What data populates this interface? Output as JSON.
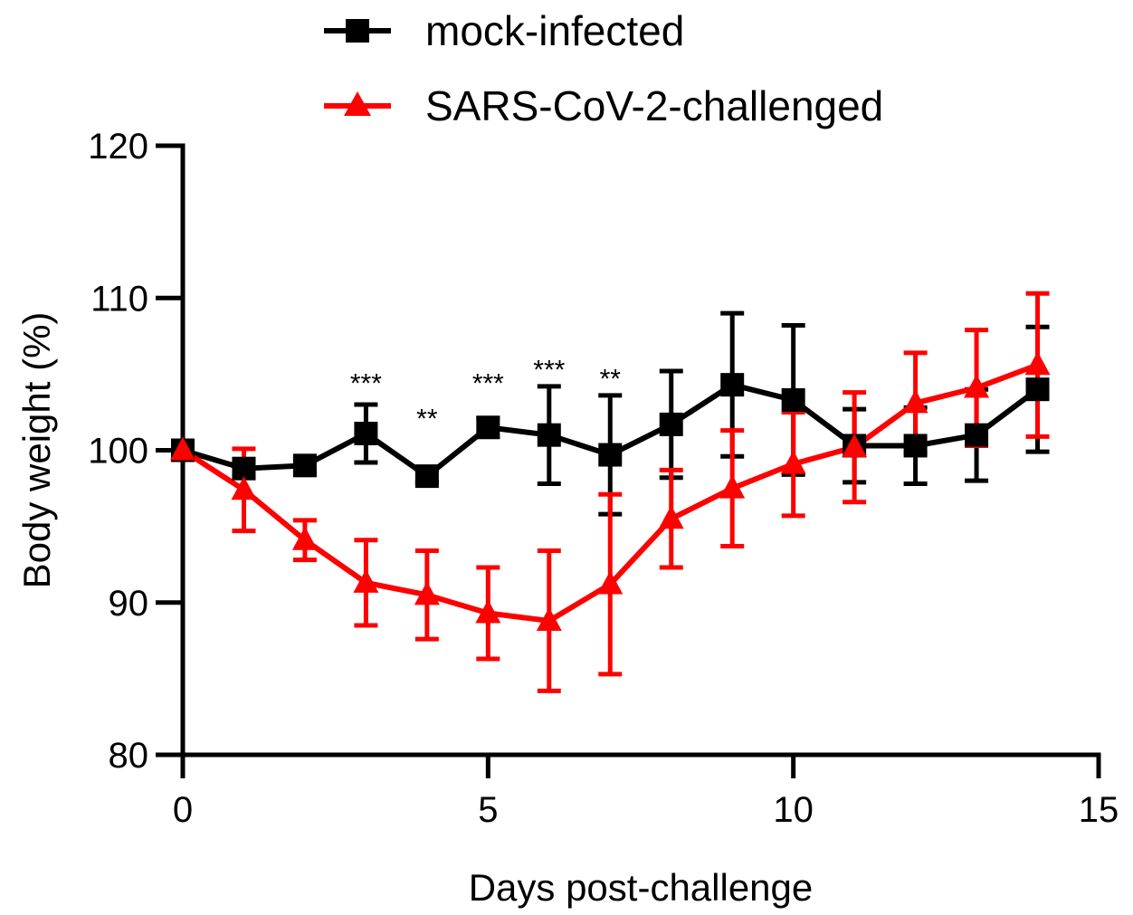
{
  "chart_data": {
    "type": "line",
    "title": "",
    "xlabel": "Days post-challenge",
    "ylabel": "Body weight (%)",
    "xlim": [
      0,
      15
    ],
    "ylim": [
      80,
      120
    ],
    "x_ticks": [
      0,
      5,
      10,
      15
    ],
    "y_ticks": [
      80,
      90,
      100,
      110,
      120
    ],
    "grid": false,
    "legend_position": "top-center",
    "series": [
      {
        "name": "mock-infected",
        "color": "#000000",
        "marker": "square",
        "x": [
          0,
          1,
          2,
          3,
          4,
          5,
          6,
          7,
          8,
          9,
          10,
          11,
          12,
          13,
          14
        ],
        "y": [
          100,
          98.8,
          99.0,
          101.1,
          98.3,
          101.5,
          101.0,
          99.7,
          101.7,
          104.3,
          103.3,
          100.3,
          100.3,
          101.0,
          104.0
        ],
        "error": [
          0,
          0.6,
          0.5,
          1.9,
          0.4,
          0.6,
          3.2,
          3.9,
          3.5,
          4.7,
          4.9,
          2.4,
          2.5,
          3.0,
          4.1
        ]
      },
      {
        "name": "SARS-CoV-2-challenged",
        "color": "#ff0000",
        "marker": "triangle",
        "x": [
          0,
          1,
          2,
          3,
          4,
          5,
          6,
          7,
          8,
          9,
          10,
          11,
          12,
          13,
          14
        ],
        "y": [
          100,
          97.4,
          94.1,
          91.3,
          90.5,
          89.3,
          88.8,
          91.2,
          95.5,
          97.5,
          99.1,
          100.2,
          103.1,
          104.1,
          105.6
        ],
        "error": [
          0,
          2.7,
          1.3,
          2.8,
          2.9,
          3.0,
          4.6,
          5.9,
          3.2,
          3.8,
          3.4,
          3.6,
          3.3,
          3.8,
          4.7
        ]
      }
    ],
    "annotations": [
      {
        "x": 3,
        "y": 103.8,
        "text": "***"
      },
      {
        "x": 4,
        "y": 101.5,
        "text": "**"
      },
      {
        "x": 5,
        "y": 103.8,
        "text": "***"
      },
      {
        "x": 6,
        "y": 104.7,
        "text": "***"
      },
      {
        "x": 7,
        "y": 104.1,
        "text": "**"
      }
    ]
  }
}
